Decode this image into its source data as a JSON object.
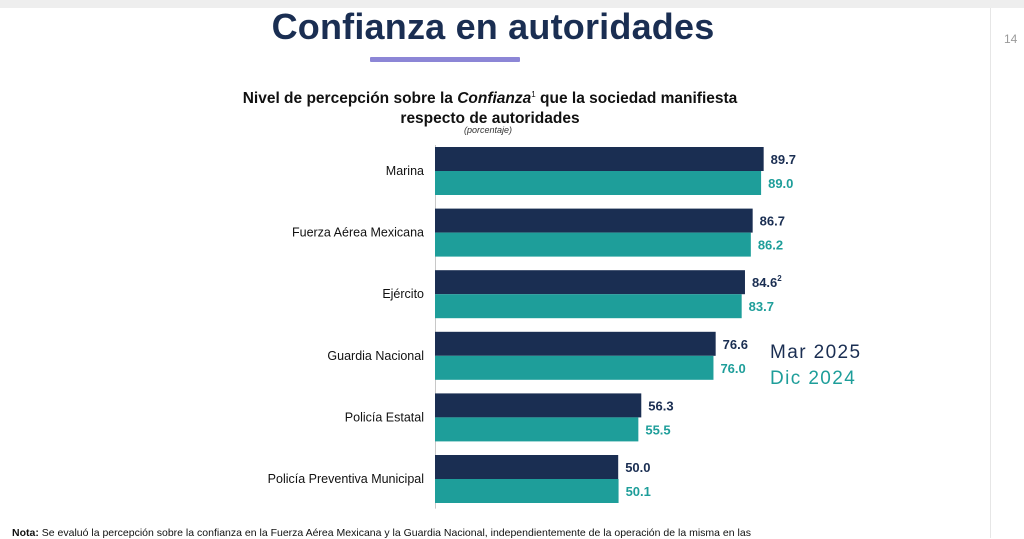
{
  "page_number": "14",
  "title": "Confianza en autoridades",
  "subtitle": {
    "line1_before": "Nivel de percepción sobre la ",
    "line1_italic": "Confianza",
    "line1_sup": "1",
    "line1_after": " que la sociedad manifiesta",
    "line2": "respecto de autoridades"
  },
  "unit_label": "(porcentaje)",
  "legend": {
    "series_a": "Mar 2025",
    "series_b": "Dic 2024"
  },
  "colors": {
    "series_a": "#1a2e52",
    "series_b": "#1e9e9a",
    "title": "#1a2e52",
    "underline": "#8c86d6"
  },
  "chart_data": {
    "type": "bar",
    "orientation": "horizontal",
    "categories": [
      "Marina",
      "Fuerza Aérea Mexicana",
      "Ejército",
      "Guardia Nacional",
      "Policía Estatal",
      "Policía Preventiva Municipal"
    ],
    "series": [
      {
        "name": "Mar 2025",
        "values": [
          89.7,
          86.7,
          84.6,
          76.6,
          56.3,
          50.0
        ],
        "labels": [
          "89.7",
          "86.7",
          "84.6",
          "76.6",
          "56.3",
          "50.0"
        ],
        "label_superscripts": [
          "",
          "",
          "2",
          "",
          "",
          ""
        ]
      },
      {
        "name": "Dic 2024",
        "values": [
          89.0,
          86.2,
          83.7,
          76.0,
          55.5,
          50.1
        ],
        "labels": [
          "89.0",
          "86.2",
          "83.7",
          "76.0",
          "55.5",
          "50.1"
        ],
        "label_superscripts": [
          "",
          "",
          "",
          "",
          "",
          ""
        ]
      }
    ],
    "xlim": [
      0,
      100
    ],
    "grid": false,
    "legend_position": "right"
  },
  "note": {
    "label": "Nota:",
    "text": " Se evaluó la percepción sobre la confianza en la Fuerza Aérea Mexicana y la Guardia Nacional, independientemente de la operación de la misma en las"
  }
}
